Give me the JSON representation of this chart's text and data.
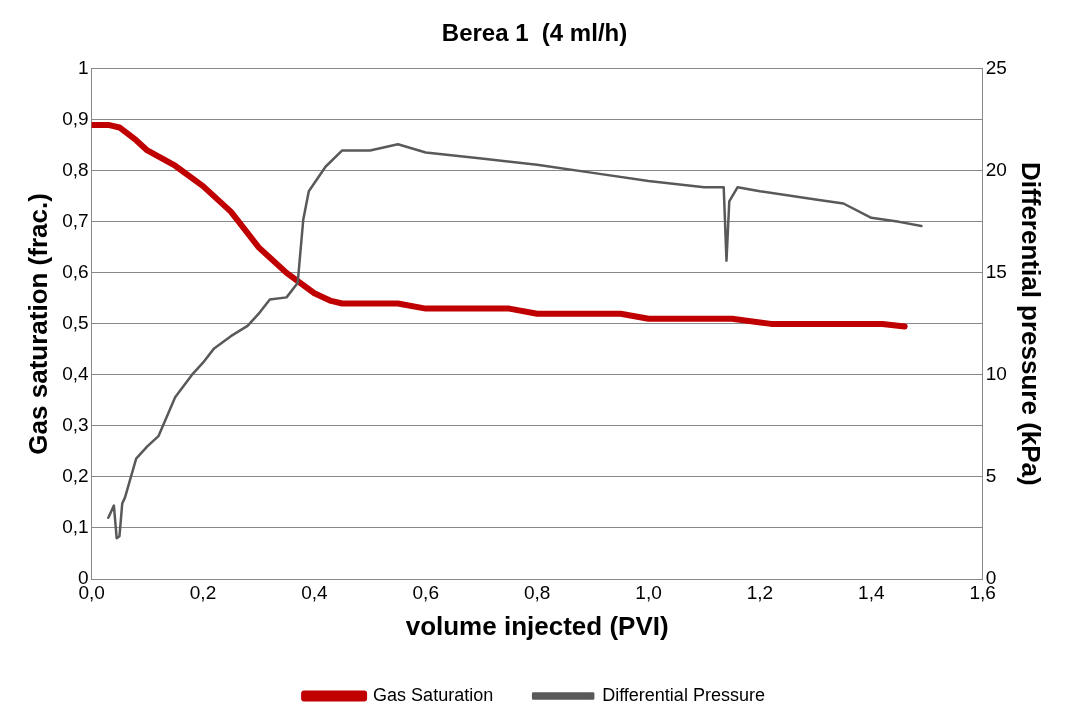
{
  "chart_data": {
    "type": "line",
    "title": "Berea 1  (4 ml/h)",
    "xlabel": "volume injected (PVI)",
    "ylabel": "Gas saturation (frac.)",
    "y2label": "Differential pressure (kPa)",
    "xlim": [
      0,
      1.6
    ],
    "xticks": [
      {
        "value": 0,
        "label": "0,0"
      },
      {
        "value": 0.2,
        "label": "0,2"
      },
      {
        "value": 0.4,
        "label": "0,4"
      },
      {
        "value": 0.6,
        "label": "0,6"
      },
      {
        "value": 0.8,
        "label": "0,8"
      },
      {
        "value": 1,
        "label": "1,0"
      },
      {
        "value": 1.2,
        "label": "1,2"
      },
      {
        "value": 1.4,
        "label": "1,4"
      },
      {
        "value": 1.6,
        "label": "1,6"
      }
    ],
    "ylim": [
      0,
      1
    ],
    "yticks": [
      0,
      {
        "value": 0.1,
        "label": "0,1"
      },
      {
        "value": 0.2,
        "label": "0,2"
      },
      {
        "value": 0.3,
        "label": "0,3"
      },
      {
        "value": 0.4,
        "label": "0,4"
      },
      {
        "value": 0.5,
        "label": "0,5"
      },
      {
        "value": 0.6,
        "label": "0,6"
      },
      {
        "value": 0.7,
        "label": "0,7"
      },
      {
        "value": 0.8,
        "label": "0,8"
      },
      {
        "value": 0.9,
        "label": "0,9"
      },
      1
    ],
    "y2lim": [
      0,
      25
    ],
    "y2ticks": [
      0,
      5,
      10,
      15,
      20,
      25
    ],
    "grid": "y",
    "legend": "bottom",
    "marker": "none",
    "line_style": "solid",
    "series": [
      {
        "name": "Gas Saturation",
        "color": "#c00000",
        "x": [
          0,
          0.03,
          0.05,
          0.08,
          0.1,
          0.15,
          0.2,
          0.25,
          0.3,
          0.35,
          0.4,
          0.43,
          0.45,
          0.55,
          0.6,
          0.75,
          0.8,
          0.95,
          1.0,
          1.15,
          1.22,
          1.42,
          1.46
        ],
        "values": [
          0.89,
          0.89,
          0.885,
          0.86,
          0.84,
          0.81,
          0.77,
          0.72,
          0.65,
          0.6,
          0.56,
          0.545,
          0.54,
          0.54,
          0.53,
          0.53,
          0.52,
          0.52,
          0.51,
          0.51,
          0.5,
          0.5,
          0.495
        ]
      },
      {
        "name": "Differential Pressure",
        "color": "#595959",
        "axis": "y2",
        "x": [
          0.03,
          0.04,
          0.045,
          0.05,
          0.055,
          0.06,
          0.08,
          0.1,
          0.12,
          0.15,
          0.18,
          0.2,
          0.22,
          0.25,
          0.28,
          0.3,
          0.32,
          0.35,
          0.37,
          0.38,
          0.39,
          0.42,
          0.45,
          0.5,
          0.55,
          0.6,
          0.7,
          0.8,
          0.9,
          1.0,
          1.1,
          1.135,
          1.14,
          1.145,
          1.16,
          1.2,
          1.3,
          1.35,
          1.4,
          1.45,
          1.49
        ],
        "values": [
          3.0,
          3.6,
          2.0,
          2.1,
          3.7,
          4.0,
          5.9,
          6.5,
          7.0,
          8.9,
          10.0,
          10.6,
          11.3,
          11.9,
          12.4,
          13.0,
          13.7,
          13.8,
          14.5,
          17.6,
          19.0,
          20.2,
          21.0,
          21.0,
          21.3,
          20.9,
          20.6,
          20.3,
          19.9,
          19.5,
          19.2,
          19.2,
          15.6,
          18.5,
          19.2,
          19.0,
          18.6,
          18.4,
          17.7,
          17.5,
          17.3
        ]
      }
    ]
  }
}
